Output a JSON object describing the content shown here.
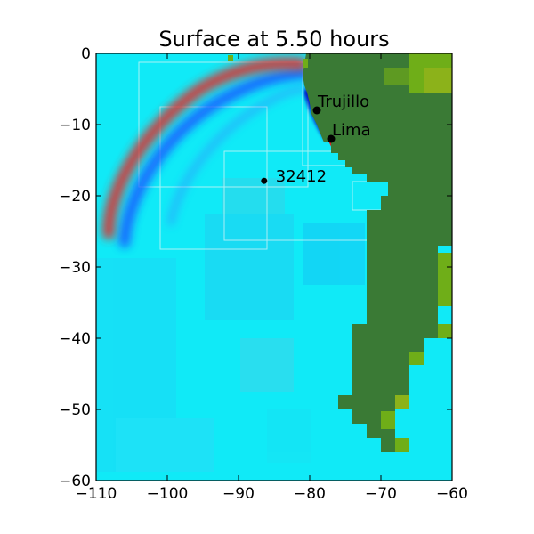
{
  "chart_data": {
    "type": "heatmap",
    "title": "Surface at 5.50 hours",
    "xlabel": "",
    "ylabel": "",
    "xlim": [
      -110,
      -60
    ],
    "ylim": [
      -60,
      0
    ],
    "x_ticks": [
      -110,
      -100,
      -90,
      -80,
      -70,
      -60
    ],
    "y_ticks": [
      0,
      -10,
      -20,
      -30,
      -40,
      -50,
      -60
    ],
    "grid": false,
    "markers": [
      {
        "name": "Trujillo",
        "x": -79.0,
        "y": -8.0
      },
      {
        "name": "Lima",
        "x": -77.0,
        "y": -12.0
      },
      {
        "name": "32412",
        "x": -86.4,
        "y": -17.9
      }
    ],
    "colors": {
      "ocean": "#10eaf7",
      "land": "#3a7a35",
      "land_highlands": "#6fae18",
      "wave_crest": "#d23a3a",
      "wave_trough": "#1a5cff"
    }
  }
}
